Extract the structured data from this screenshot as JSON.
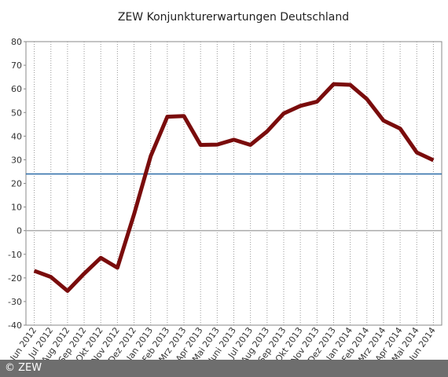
{
  "chart_data": {
    "type": "line",
    "title": "ZEW Konjunkturerwartungen Deutschland",
    "categories": [
      "Jun 2012",
      "Jul 2012",
      "Aug 2012",
      "Sep 2012",
      "Okt 2012",
      "Nov 2012",
      "Dez 2012",
      "Jan 2013",
      "Feb 2013",
      "Mrz 2013",
      "Apr 2013",
      "Mai 2013",
      "Juni 2013",
      "Jul 2013",
      "Aug 2013",
      "Sep 2013",
      "Okt 2013",
      "Nov 2013",
      "Dez 2013",
      "Jan 2014",
      "Feb 2014",
      "Mrz 2014",
      "Apr 2014",
      "Mai 2014",
      "Jun 2014"
    ],
    "values": [
      -17,
      -19.6,
      -25.5,
      -18.2,
      -11.5,
      -15.7,
      6.9,
      31.5,
      48.2,
      48.5,
      36.3,
      36.4,
      38.5,
      36.3,
      42,
      49.6,
      52.8,
      54.6,
      62,
      61.7,
      55.7,
      46.6,
      43.2,
      33.1,
      29.8
    ],
    "color": "#7a0c0c",
    "ylim": [
      -40,
      80
    ],
    "yticks": [
      -40,
      -30,
      -20,
      -10,
      0,
      10,
      20,
      30,
      40,
      50,
      60,
      70,
      80
    ],
    "hlines": [
      {
        "value": 0,
        "color": "#aaaaaa"
      },
      {
        "value": 24,
        "color": "#2a6aa8"
      }
    ],
    "vertical_grid": true,
    "copyright": "© ZEW"
  }
}
